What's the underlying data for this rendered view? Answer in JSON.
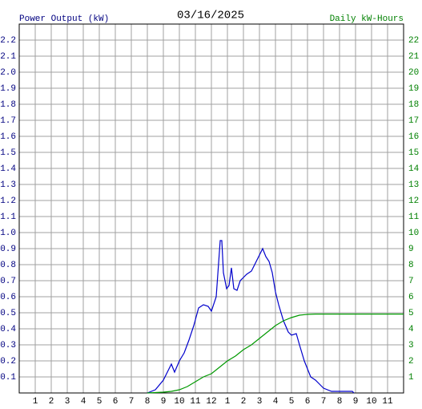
{
  "chart_data": {
    "type": "line",
    "title": "03/16/2025",
    "xlim": [
      0,
      24
    ],
    "xticks": [
      1,
      2,
      3,
      4,
      5,
      6,
      7,
      8,
      9,
      10,
      11,
      12,
      {
        "value": 13,
        "label": "1"
      },
      {
        "value": 14,
        "label": "2"
      },
      {
        "value": 15,
        "label": "3"
      },
      {
        "value": 16,
        "label": "4"
      },
      {
        "value": 17,
        "label": "5"
      },
      {
        "value": 18,
        "label": "6"
      },
      {
        "value": 19,
        "label": "7"
      },
      {
        "value": 20,
        "label": "8"
      },
      {
        "value": 21,
        "label": "9"
      },
      {
        "value": 22,
        "label": "10"
      },
      {
        "value": 23,
        "label": "11"
      }
    ],
    "ylim": [
      0,
      2.3
    ],
    "yticks": [
      0.1,
      0.2,
      0.3,
      0.4,
      0.5,
      0.6,
      0.7,
      0.8,
      0.9,
      {
        "value": 1,
        "label": "1.0"
      },
      1.1,
      1.2,
      1.3,
      1.4,
      1.5,
      1.6,
      1.7,
      1.8,
      1.9,
      {
        "value": 2,
        "label": "2.0"
      },
      2.1,
      2.2
    ],
    "y2lim": [
      0,
      23
    ],
    "y2ticks": [
      1,
      2,
      3,
      4,
      5,
      6,
      7,
      8,
      9,
      10,
      11,
      12,
      13,
      14,
      15,
      16,
      17,
      18,
      19,
      20,
      21,
      22
    ],
    "grid": true,
    "series": [
      {
        "name": "Power Output (kW)",
        "color": "#0000cc",
        "x": [
          8.0,
          8.5,
          9.0,
          9.3,
          9.5,
          9.7,
          10.0,
          10.3,
          10.6,
          10.9,
          11.2,
          11.5,
          11.8,
          12.0,
          12.3,
          12.55,
          12.65,
          12.75,
          12.95,
          13.1,
          13.25,
          13.4,
          13.6,
          13.8,
          14.0,
          14.2,
          14.5,
          14.8,
          15.0,
          15.2,
          15.4,
          15.6,
          15.8,
          16.0,
          16.2,
          16.5,
          16.8,
          17.0,
          17.3,
          17.5,
          17.8,
          18.0,
          18.2,
          18.5,
          18.8,
          19.0,
          19.5,
          20.0,
          20.8,
          20.9
        ],
        "values": [
          0,
          0.02,
          0.08,
          0.14,
          0.18,
          0.13,
          0.2,
          0.25,
          0.33,
          0.42,
          0.53,
          0.55,
          0.54,
          0.51,
          0.6,
          0.95,
          0.95,
          0.75,
          0.65,
          0.67,
          0.78,
          0.65,
          0.64,
          0.7,
          0.72,
          0.74,
          0.76,
          0.82,
          0.86,
          0.9,
          0.85,
          0.82,
          0.75,
          0.63,
          0.55,
          0.45,
          0.38,
          0.36,
          0.37,
          0.3,
          0.2,
          0.15,
          0.1,
          0.08,
          0.05,
          0.03,
          0.01,
          0.01,
          0.01,
          0
        ]
      },
      {
        "name": "Daily kW-Hours",
        "color": "#009900",
        "axis": "y2",
        "x": [
          8.0,
          9.0,
          9.5,
          10.0,
          10.5,
          11.0,
          11.5,
          12.0,
          12.5,
          13.0,
          13.5,
          14.0,
          14.5,
          15.0,
          15.5,
          16.0,
          16.5,
          17.0,
          17.5,
          18.0,
          18.5,
          19.0,
          24.0
        ],
        "values": [
          0,
          0.05,
          0.1,
          0.2,
          0.4,
          0.7,
          1.0,
          1.2,
          1.6,
          2.0,
          2.3,
          2.7,
          3.0,
          3.4,
          3.8,
          4.2,
          4.5,
          4.7,
          4.85,
          4.9,
          4.92,
          4.92,
          4.92
        ]
      }
    ]
  }
}
